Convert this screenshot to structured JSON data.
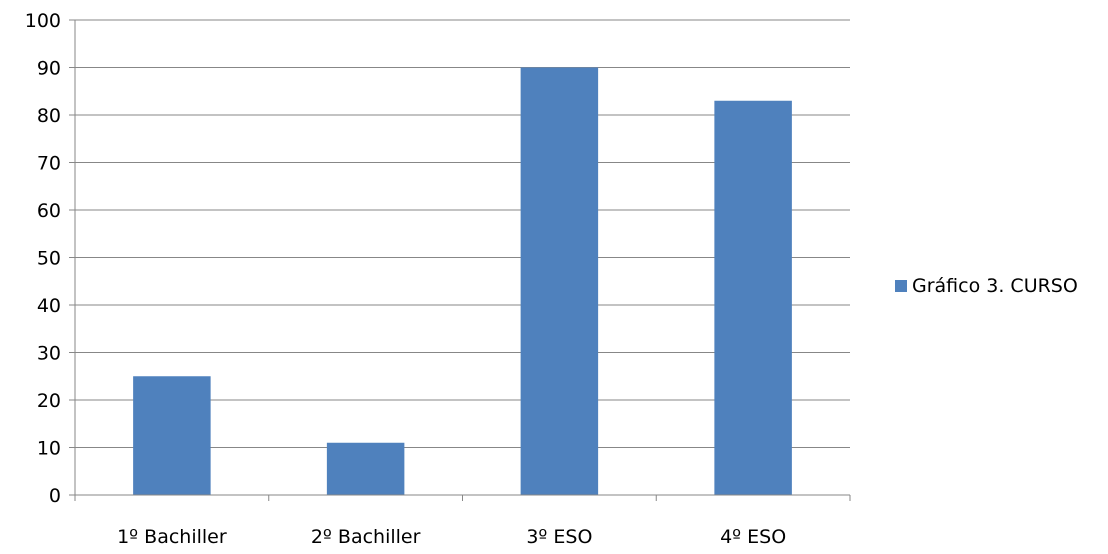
{
  "chart_data": {
    "type": "bar",
    "title": "",
    "xlabel": "",
    "ylabel": "",
    "categories": [
      "1º Bachiller",
      "2º Bachiller",
      "3º ESO",
      "4º ESO"
    ],
    "series": [
      {
        "name": "Gráfico 3. CURSO",
        "values": [
          25,
          11,
          90,
          83
        ],
        "color": "#4f81bd"
      }
    ],
    "ylim": [
      0,
      100
    ],
    "yticks": [
      "0",
      "10",
      "20",
      "30",
      "40",
      "50",
      "60",
      "70",
      "80",
      "90",
      "100"
    ],
    "grid": true,
    "legend_position": "right"
  }
}
